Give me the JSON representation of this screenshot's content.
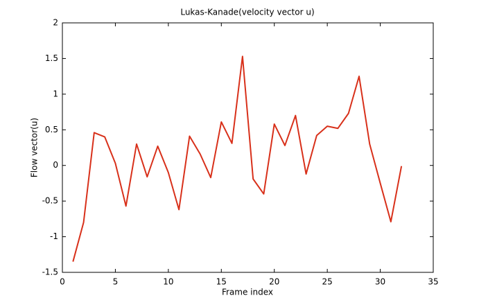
{
  "chart_data": {
    "type": "line",
    "title": "Lukas-Kanade(velocity vector u)",
    "x_label": "Frame index",
    "y_label": "Flow vector(u)",
    "x": [
      1,
      2,
      3,
      4,
      5,
      6,
      7,
      8,
      9,
      10,
      11,
      12,
      13,
      14,
      15,
      16,
      17,
      18,
      19,
      20,
      21,
      22,
      23,
      24,
      25,
      26,
      27,
      28,
      29,
      30,
      31,
      32
    ],
    "series": [
      {
        "color": "#d8301a",
        "values": [
          -1.35,
          -0.8,
          0.46,
          0.4,
          0.03,
          -0.57,
          0.3,
          -0.16,
          0.27,
          -0.1,
          -0.62,
          0.41,
          0.16,
          -0.17,
          0.61,
          0.31,
          1.53,
          -0.19,
          -0.4,
          0.58,
          0.28,
          0.7,
          -0.12,
          0.42,
          0.55,
          0.52,
          0.73,
          1.25,
          0.3,
          -0.25,
          -0.79,
          -0.01
        ]
      }
    ],
    "xlim": [
      0,
      35
    ],
    "xticks": [
      0,
      5,
      10,
      15,
      20,
      25,
      30,
      35
    ],
    "ylim": [
      -1.5,
      2
    ],
    "yticks": [
      -1.5,
      -1,
      -0.5,
      0,
      0.5,
      1,
      1.5,
      2
    ]
  }
}
